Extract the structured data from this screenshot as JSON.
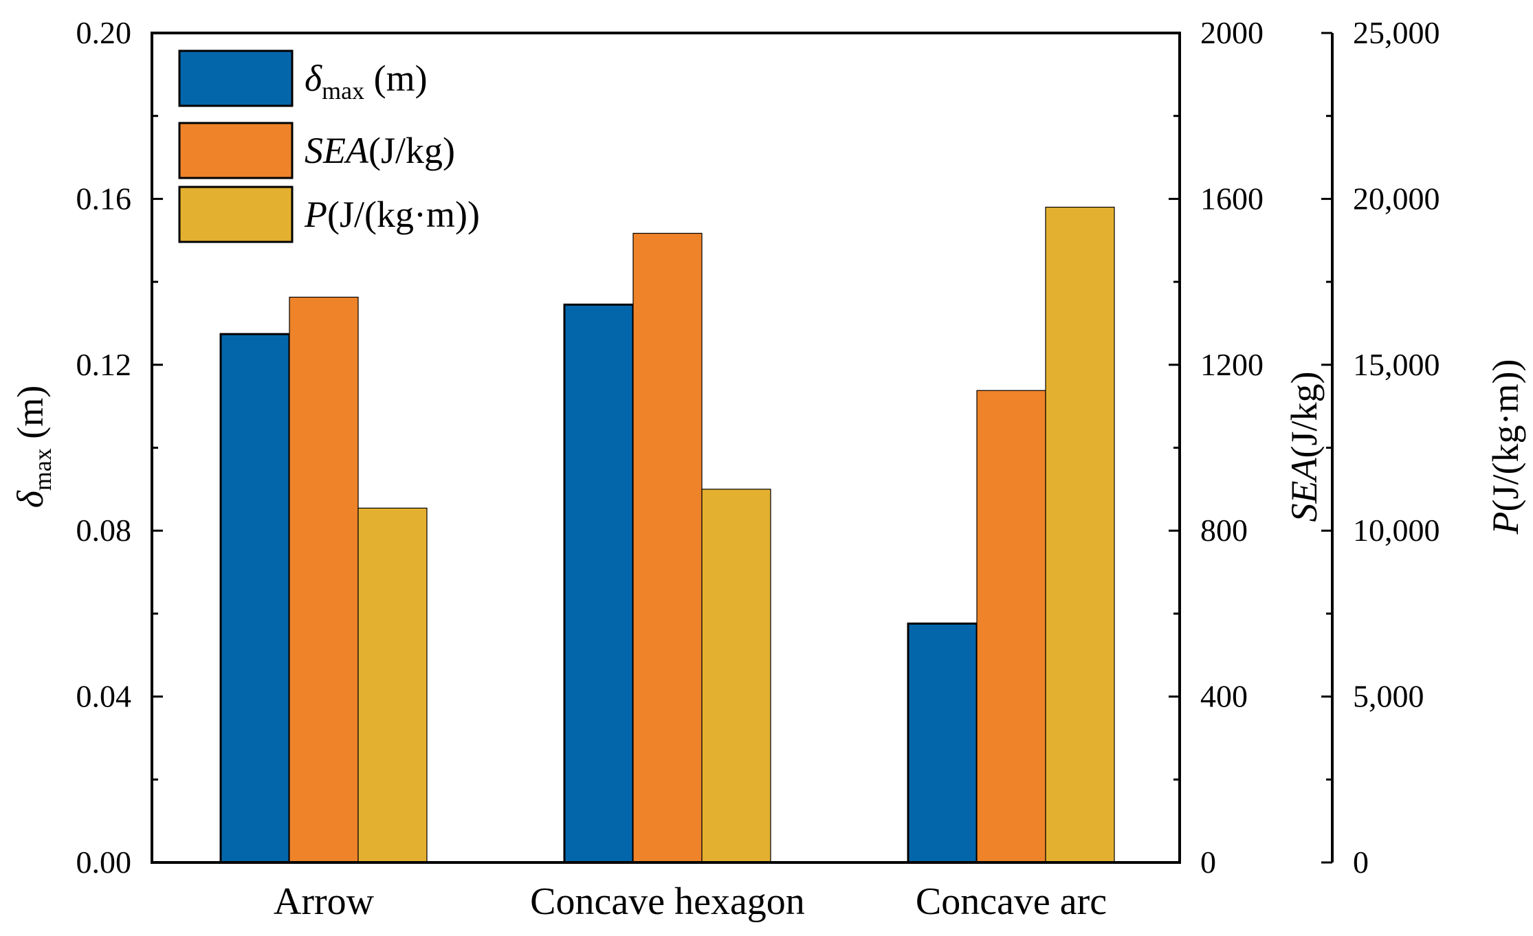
{
  "chart_data": {
    "type": "bar",
    "categories": [
      "Arrow",
      "Concave hexagon",
      "Concave arc"
    ],
    "series": [
      {
        "name": "δmax (m)",
        "axis": "left",
        "color": "#0466aa",
        "values": [
          0.1274,
          0.1345,
          0.0576
        ]
      },
      {
        "name": "SEA(J/kg)",
        "axis": "right1",
        "color": "#ee832a",
        "values": [
          1363,
          1517,
          1138
        ]
      },
      {
        "name": "P(J/(kg·m))",
        "axis": "right2",
        "color": "#e4b030",
        "values": [
          10680,
          11250,
          19750
        ]
      }
    ],
    "axes": {
      "left": {
        "label_symbol": "δ",
        "label_sub": "max",
        "label_rest": " (m)",
        "range": [
          0,
          0.2
        ],
        "ticks": [
          "0.00",
          "0.04",
          "0.08",
          "0.12",
          "0.16",
          "0.20"
        ],
        "tick_values": [
          0,
          0.04,
          0.08,
          0.12,
          0.16,
          0.2
        ]
      },
      "right1": {
        "label_italic": "SEA",
        "label_rest": "(J/kg)",
        "range": [
          0,
          2000
        ],
        "ticks": [
          "0",
          "400",
          "800",
          "1200",
          "1600",
          "2000"
        ],
        "tick_values": [
          0,
          400,
          800,
          1200,
          1600,
          2000
        ]
      },
      "right2": {
        "label_italic": "P",
        "label_rest": "(J/(kg·m))",
        "range": [
          0,
          25000
        ],
        "ticks": [
          "0",
          "5,000",
          "10,000",
          "15,000",
          "20,000",
          "25,000"
        ],
        "tick_values": [
          0,
          5000,
          10000,
          15000,
          20000,
          25000
        ]
      }
    },
    "legend": {
      "position": "top-left",
      "entries": [
        {
          "italic": "δ",
          "sub": "max",
          "rest": " (m)",
          "color": "#0466aa"
        },
        {
          "italic": "SEA",
          "sub": "",
          "rest": "(J/kg)",
          "color": "#ee832a"
        },
        {
          "italic": "P",
          "sub": "",
          "rest": "(J/(kg·m))",
          "color": "#e4b030"
        }
      ]
    },
    "grid": false
  }
}
